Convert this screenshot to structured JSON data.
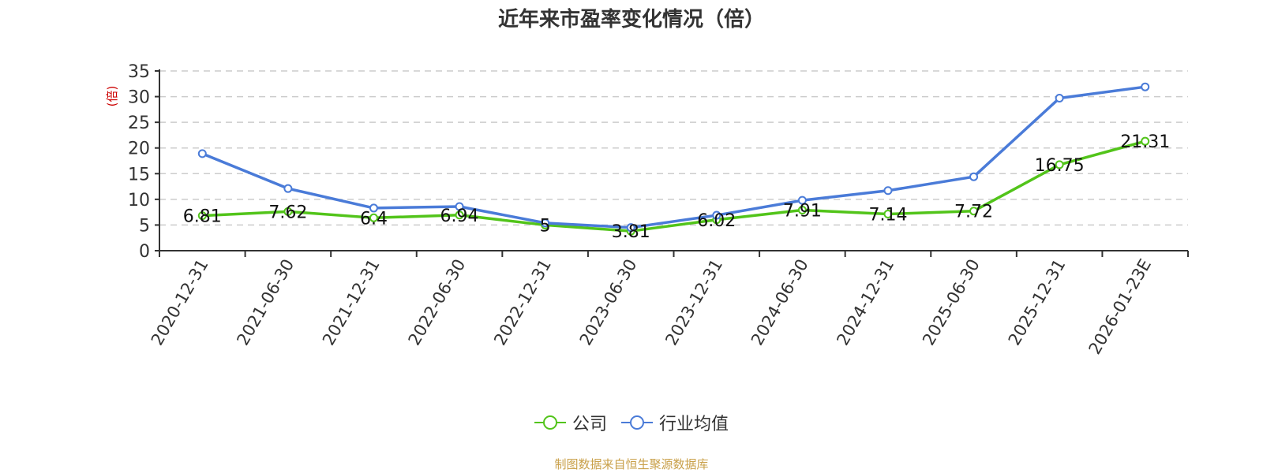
{
  "title": "近年来市盈率变化情况（倍）",
  "footer": "制图数据来自恒生聚源数据库",
  "colors": {
    "company": "#52c41a",
    "industry": "#4a7bd8",
    "yunit": "#cc0000",
    "footer": "#c9a04a"
  },
  "chart_data": {
    "type": "line",
    "title": "近年来市盈率变化情况（倍）",
    "xlabel": "",
    "ylabel": "(倍)",
    "ylim": [
      0,
      35
    ],
    "yticks": [
      0,
      5,
      10,
      15,
      20,
      25,
      30,
      35
    ],
    "grid": true,
    "legend_position": "bottom",
    "categories": [
      "2020-12-31",
      "2021-06-30",
      "2021-12-31",
      "2022-06-30",
      "2022-12-31",
      "2023-06-30",
      "2023-12-31",
      "2024-06-30",
      "2024-12-31",
      "2025-06-30",
      "2025-12-31",
      "2026-01-23E"
    ],
    "series": [
      {
        "name": "公司",
        "color": "#52c41a",
        "values": [
          6.81,
          7.62,
          6.4,
          6.94,
          5,
          3.81,
          6.02,
          7.91,
          7.14,
          7.72,
          16.75,
          21.31
        ],
        "labels": [
          "6.81",
          "7.62",
          "6.4",
          "6.94",
          "5",
          "3.81",
          "6.02",
          "7.91",
          "7.14",
          "7.72",
          "16.75",
          "21.31"
        ]
      },
      {
        "name": "行业均值",
        "color": "#4a7bd8",
        "values": [
          18.9,
          12.1,
          8.3,
          8.6,
          5.4,
          4.5,
          6.9,
          9.8,
          11.7,
          14.4,
          29.7,
          31.9
        ]
      }
    ]
  },
  "legend": [
    {
      "label": "公司"
    },
    {
      "label": "行业均值"
    }
  ]
}
